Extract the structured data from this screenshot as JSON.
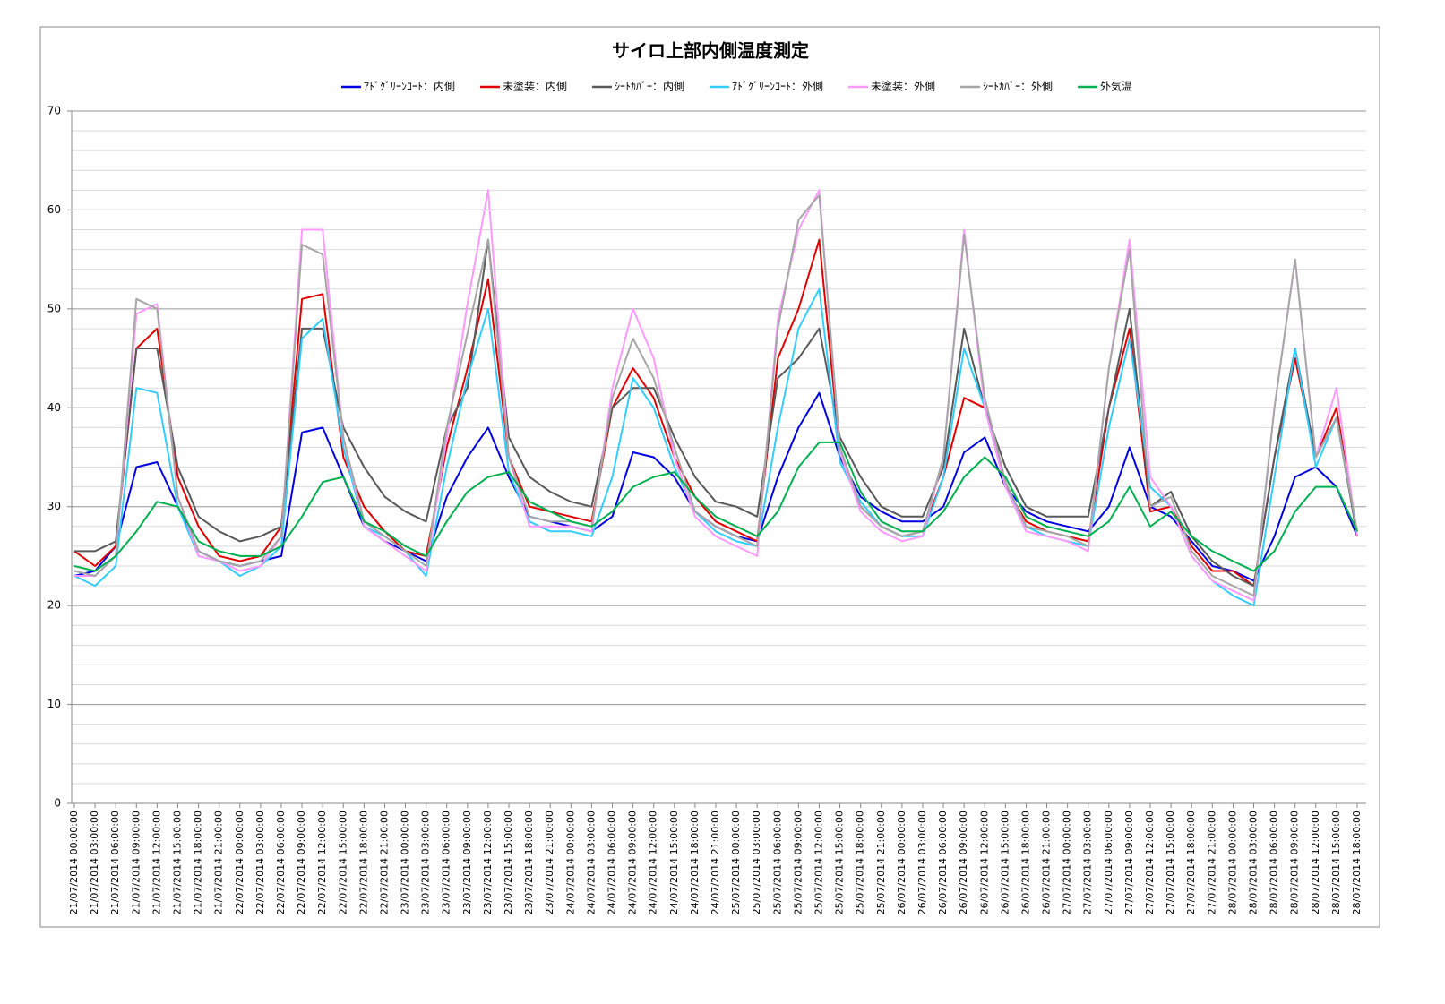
{
  "chart_data": {
    "type": "line",
    "title": "サイロ上部内側温度測定",
    "categories": [
      "21/07/2014 00:00:00",
      "21/07/2014 03:00:00",
      "21/07/2014 06:00:00",
      "21/07/2014 09:00:00",
      "21/07/2014 12:00:00",
      "21/07/2014 15:00:00",
      "21/07/2014 18:00:00",
      "21/07/2014 21:00:00",
      "22/07/2014 00:00:00",
      "22/07/2014 03:00:00",
      "22/07/2014 06:00:00",
      "22/07/2014 09:00:00",
      "22/07/2014 12:00:00",
      "22/07/2014 15:00:00",
      "22/07/2014 18:00:00",
      "22/07/2014 21:00:00",
      "23/07/2014 00:00:00",
      "23/07/2014 03:00:00",
      "23/07/2014 06:00:00",
      "23/07/2014 09:00:00",
      "23/07/2014 12:00:00",
      "23/07/2014 15:00:00",
      "23/07/2014 18:00:00",
      "23/07/2014 21:00:00",
      "24/07/2014 00:00:00",
      "24/07/2014 03:00:00",
      "24/07/2014 06:00:00",
      "24/07/2014 09:00:00",
      "24/07/2014 12:00:00",
      "24/07/2014 15:00:00",
      "24/07/2014 18:00:00",
      "24/07/2014 21:00:00",
      "25/07/2014 00:00:00",
      "25/07/2014 03:00:00",
      "25/07/2014 06:00:00",
      "25/07/2014 09:00:00",
      "25/07/2014 12:00:00",
      "25/07/2014 15:00:00",
      "25/07/2014 18:00:00",
      "25/07/2014 21:00:00",
      "26/07/2014 00:00:00",
      "26/07/2014 03:00:00",
      "26/07/2014 06:00:00",
      "26/07/2014 09:00:00",
      "26/07/2014 12:00:00",
      "26/07/2014 15:00:00",
      "26/07/2014 18:00:00",
      "26/07/2014 21:00:00",
      "27/07/2014 00:00:00",
      "27/07/2014 03:00:00",
      "27/07/2014 06:00:00",
      "27/07/2014 09:00:00",
      "27/07/2014 12:00:00",
      "27/07/2014 15:00:00",
      "27/07/2014 18:00:00",
      "27/07/2014 21:00:00",
      "28/07/2014 00:00:00",
      "28/07/2014 03:00:00",
      "28/07/2014 06:00:00",
      "28/07/2014 09:00:00",
      "28/07/2014 12:00:00",
      "28/07/2014 15:00:00",
      "28/07/2014 18:00:00"
    ],
    "series": [
      {
        "name": "ｱﾄﾞｸﾞﾘｰﾝｺｰﾄ：内側",
        "color": "#0000e0",
        "values": [
          23,
          23.5,
          26,
          34,
          34.5,
          30,
          25.5,
          24.5,
          24,
          24.5,
          25,
          37.5,
          38,
          33,
          28,
          26.5,
          25.5,
          24.5,
          31,
          35,
          38,
          33,
          29,
          28.5,
          28,
          27.5,
          29,
          35.5,
          35,
          33,
          29.5,
          28,
          27,
          26.5,
          33,
          38,
          41.5,
          35,
          31,
          29.5,
          28.5,
          28.5,
          30,
          35.5,
          37,
          32,
          29.5,
          28.5,
          28,
          27.5,
          30,
          36,
          30,
          29,
          26.5,
          24,
          23.5,
          22.5,
          27,
          33,
          34,
          32,
          27
        ]
      },
      {
        "name": "未塗装：内側",
        "color": "#e00000",
        "values": [
          25.5,
          24,
          26,
          46,
          48,
          33,
          28,
          25,
          24.5,
          25,
          28,
          51,
          51.5,
          35,
          30,
          27.5,
          25.5,
          25,
          36,
          44,
          53,
          35,
          30,
          29.5,
          29,
          28.5,
          40,
          44,
          41,
          35,
          31,
          28.5,
          27.5,
          26.5,
          45,
          50,
          57,
          35.5,
          30,
          28,
          27,
          27.5,
          33,
          41,
          40,
          32,
          28.5,
          27.5,
          27,
          26.5,
          40,
          48,
          29.5,
          30,
          26,
          23.5,
          23.5,
          22,
          35,
          45,
          35,
          40,
          27
        ]
      },
      {
        "name": "ｼｰﾄｶﾊﾞｰ：内側",
        "color": "#595959",
        "values": [
          25.5,
          25.5,
          26.5,
          46,
          46,
          34,
          29,
          27.5,
          26.5,
          27,
          28,
          48,
          48,
          38,
          34,
          31,
          29.5,
          28.5,
          38,
          42,
          57,
          37,
          33,
          31.5,
          30.5,
          30,
          40,
          42,
          42,
          37,
          33,
          30.5,
          30,
          29,
          43,
          45,
          48,
          37,
          33,
          30,
          29,
          29,
          34,
          48,
          40,
          34,
          30,
          29,
          29,
          29,
          40,
          50,
          30,
          31.5,
          27,
          24.5,
          23,
          22,
          35,
          46,
          35,
          39,
          27
        ]
      },
      {
        "name": "ｱﾄﾞｸﾞﾘｰﾝｺｰﾄ：外側",
        "color": "#33ccff",
        "values": [
          23,
          22,
          24,
          42,
          41.5,
          30,
          25,
          24.5,
          23,
          24,
          26,
          47,
          49,
          36,
          28,
          27,
          25.5,
          23,
          34,
          43,
          50,
          33.5,
          28.5,
          27.5,
          27.5,
          27,
          33,
          43,
          40,
          34,
          29.5,
          27.5,
          26.5,
          26,
          38,
          48,
          52,
          34.5,
          30.5,
          28,
          27,
          27,
          33,
          46,
          40,
          32,
          28,
          27,
          26.5,
          26,
          38,
          47,
          32,
          30,
          25,
          22.5,
          21,
          20,
          33,
          46,
          34,
          39,
          27.5
        ]
      },
      {
        "name": "未塗装：外側",
        "color": "#ff99ff",
        "values": [
          23,
          23,
          25,
          49.5,
          50.5,
          31,
          25,
          24.5,
          23.5,
          24,
          27,
          58,
          58,
          37,
          28,
          26.5,
          25,
          23.5,
          37,
          50.5,
          62,
          35,
          28,
          28,
          28,
          27.5,
          42,
          50,
          45,
          35,
          29,
          27,
          26,
          25,
          49,
          58,
          62,
          35.5,
          29.5,
          27.5,
          26.5,
          27,
          35,
          58,
          40,
          32,
          27.5,
          27,
          26.5,
          25.5,
          44,
          57,
          33,
          30,
          25,
          22.5,
          21.5,
          20.5,
          40,
          55,
          35,
          42,
          27
        ]
      },
      {
        "name": "ｼｰﾄｶﾊﾞｰ：外側",
        "color": "#a6a6a6",
        "values": [
          23.5,
          23,
          25,
          51,
          50,
          31,
          25.5,
          24.5,
          24,
          24.5,
          27,
          56.5,
          55.5,
          37,
          28.5,
          27,
          25.5,
          24,
          38,
          47.5,
          57,
          35,
          29,
          28.5,
          28.5,
          28,
          41,
          47,
          43,
          36,
          29.5,
          28,
          27,
          26,
          48,
          59,
          61.5,
          36,
          30,
          28,
          27,
          27.5,
          35,
          57.5,
          41,
          32.5,
          28,
          27.5,
          27,
          26,
          44,
          56,
          30,
          31,
          25.5,
          23,
          22,
          21,
          40,
          55,
          35,
          39,
          27.5
        ]
      },
      {
        "name": "外気温",
        "color": "#00b050",
        "values": [
          24,
          23.5,
          25,
          27.5,
          30.5,
          30,
          26.5,
          25.5,
          25,
          25,
          26,
          29,
          32.5,
          33,
          28.5,
          27.5,
          26,
          25,
          28.5,
          31.5,
          33,
          33.5,
          30.5,
          29.5,
          28.5,
          28,
          29.5,
          32,
          33,
          33.5,
          31,
          29,
          28,
          27,
          29.5,
          34,
          36.5,
          36.5,
          31.5,
          28.5,
          27.5,
          27.5,
          29.5,
          33,
          35,
          33,
          29,
          28,
          27.5,
          27,
          28.5,
          32,
          28,
          29.5,
          27,
          25.5,
          24.5,
          23.5,
          25.5,
          29.5,
          32,
          32,
          27.5
        ]
      }
    ],
    "ylim": [
      0,
      70
    ],
    "yticks": [
      0,
      10,
      20,
      30,
      40,
      50,
      60,
      70
    ],
    "y_minor_ticks": [
      2,
      4,
      6,
      8,
      12,
      14,
      16,
      18,
      22,
      24,
      26,
      28,
      32,
      34,
      36,
      38,
      42,
      44,
      46,
      48,
      52,
      54,
      56,
      58,
      62,
      64,
      66,
      68
    ],
    "grid": true,
    "legend": "top"
  }
}
